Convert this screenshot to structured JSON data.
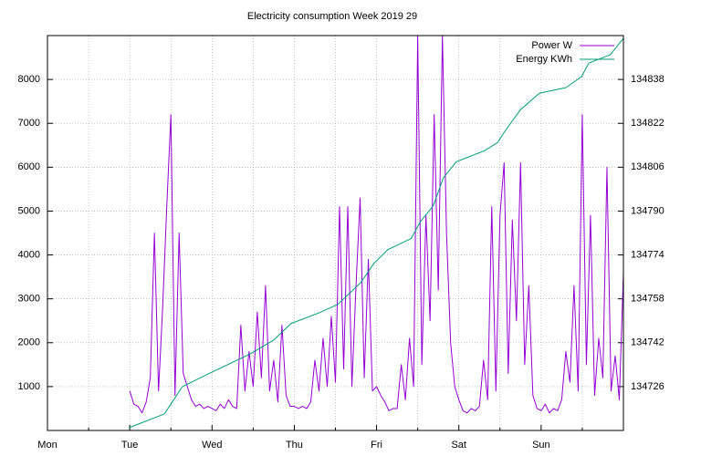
{
  "chart_data": {
    "type": "line",
    "title": "Electricity consumption Week 2019 29",
    "xlim": [
      0,
      7
    ],
    "xticks": [
      {
        "value": 0,
        "label": "Mon"
      },
      {
        "value": 1,
        "label": "Tue"
      },
      {
        "value": 2,
        "label": "Wed"
      },
      {
        "value": 3,
        "label": "Thu"
      },
      {
        "value": 4,
        "label": "Fri"
      },
      {
        "value": 5,
        "label": "Sat"
      },
      {
        "value": 6,
        "label": "Sun"
      }
    ],
    "xminorticks": [
      0.5,
      1.5,
      2.5,
      3.5,
      4.5,
      5.5,
      6.5
    ],
    "ylim": [
      0,
      9000
    ],
    "yticks": [
      1000,
      2000,
      3000,
      4000,
      5000,
      6000,
      7000,
      8000
    ],
    "y2lim": [
      134710,
      134854
    ],
    "y2ticks": [
      134726,
      134742,
      134758,
      134774,
      134790,
      134806,
      134822,
      134838
    ],
    "grid": true,
    "legend": "top-right",
    "series": [
      {
        "name": "Power W",
        "color": "#9400d3",
        "x": [
          1.0,
          1.05,
          1.1,
          1.15,
          1.2,
          1.25,
          1.3,
          1.35,
          1.4,
          1.45,
          1.5,
          1.55,
          1.6,
          1.65,
          1.7,
          1.75,
          1.8,
          1.85,
          1.9,
          1.95,
          2.0,
          2.05,
          2.1,
          2.15,
          2.2,
          2.25,
          2.3,
          2.35,
          2.4,
          2.45,
          2.5,
          2.55,
          2.6,
          2.65,
          2.7,
          2.75,
          2.8,
          2.85,
          2.9,
          2.95,
          3.0,
          3.05,
          3.1,
          3.15,
          3.2,
          3.25,
          3.3,
          3.35,
          3.4,
          3.45,
          3.5,
          3.55,
          3.6,
          3.65,
          3.7,
          3.75,
          3.8,
          3.85,
          3.9,
          3.95,
          4.0,
          4.05,
          4.1,
          4.15,
          4.2,
          4.25,
          4.3,
          4.35,
          4.4,
          4.45,
          4.5,
          4.55,
          4.6,
          4.65,
          4.7,
          4.75,
          4.8,
          4.85,
          4.9,
          4.95,
          5.0,
          5.05,
          5.1,
          5.15,
          5.2,
          5.25,
          5.3,
          5.35,
          5.4,
          5.45,
          5.5,
          5.55,
          5.6,
          5.65,
          5.7,
          5.75,
          5.8,
          5.85,
          5.9,
          5.95,
          6.0,
          6.05,
          6.1,
          6.15,
          6.2,
          6.25,
          6.3,
          6.35,
          6.4,
          6.45,
          6.5,
          6.55,
          6.6,
          6.65,
          6.7,
          6.75,
          6.8,
          6.85,
          6.9,
          6.95,
          7.0
        ],
        "values": [
          900,
          600,
          550,
          400,
          650,
          1200,
          4500,
          900,
          2800,
          5100,
          7200,
          800,
          4500,
          1300,
          1000,
          700,
          550,
          600,
          500,
          550,
          500,
          450,
          600,
          500,
          700,
          550,
          500,
          2400,
          900,
          1800,
          1000,
          2700,
          1200,
          3300,
          900,
          1600,
          650,
          2400,
          800,
          550,
          550,
          500,
          550,
          500,
          650,
          1600,
          900,
          2100,
          1000,
          2600,
          1100,
          5100,
          1400,
          5100,
          1000,
          3300,
          5300,
          1200,
          3900,
          900,
          1000,
          800,
          650,
          450,
          500,
          500,
          1500,
          700,
          2100,
          1000,
          9000,
          1500,
          4900,
          2500,
          7200,
          3200,
          9000,
          4500,
          2000,
          1000,
          700,
          450,
          400,
          500,
          450,
          550,
          1600,
          700,
          5100,
          900,
          4900,
          6100,
          1300,
          4800,
          2500,
          6100,
          1500,
          3300,
          800,
          500,
          450,
          600,
          400,
          500,
          450,
          700,
          1800,
          1100,
          3300,
          900,
          7200,
          1500,
          4900,
          800,
          2100,
          1200,
          6000,
          900,
          1700,
          700,
          3600
        ]
      },
      {
        "name": "Energy KWh",
        "color": "#009e73",
        "axis": "y2",
        "x": [
          0.99,
          1.42,
          1.53,
          1.64,
          1.98,
          2.47,
          2.75,
          2.96,
          3.31,
          3.53,
          3.81,
          3.97,
          4.14,
          4.42,
          4.53,
          4.69,
          4.81,
          4.97,
          5.31,
          5.47,
          5.58,
          5.75,
          5.98,
          6.3,
          6.49,
          6.58,
          6.84,
          7.0
        ],
        "values": [
          134711,
          134716,
          134721,
          134726,
          134731,
          134738,
          134743,
          134749,
          134753,
          134756,
          134764,
          134771,
          134776,
          134780,
          134786,
          134792,
          134802,
          134808,
          134812,
          134815,
          134820,
          134827,
          134833,
          134835,
          134839,
          134844,
          134847,
          134853
        ]
      }
    ]
  }
}
